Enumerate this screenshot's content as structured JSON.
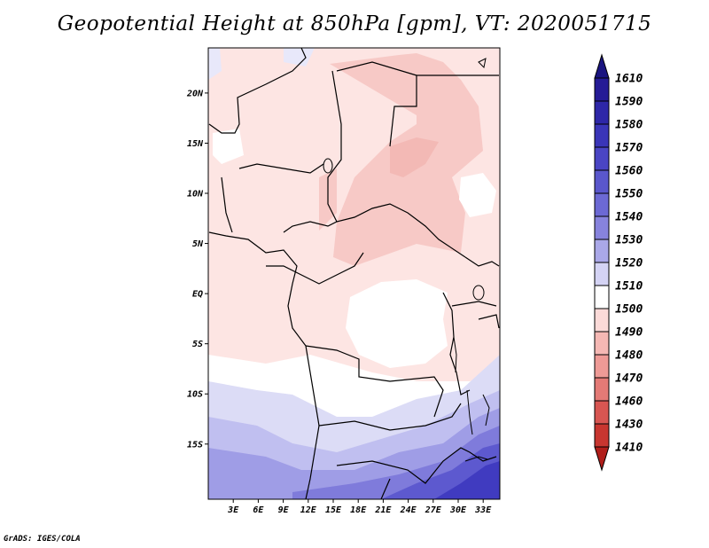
{
  "title": "Geopotential Height at 850hPa [gpm], VT: 2020051715",
  "credit": "GrADS: IGES/COLA",
  "map": {
    "lat_labels": [
      "20N",
      "15N",
      "10N",
      "5N",
      "EQ",
      "5S",
      "10S",
      "15S"
    ],
    "lon_labels": [
      "3E",
      "6E",
      "9E",
      "12E",
      "15E",
      "18E",
      "21E",
      "24E",
      "27E",
      "30E",
      "33E"
    ],
    "lat_range": [
      -20.5,
      24.5
    ],
    "lon_range": [
      0,
      35
    ]
  },
  "colorbar": {
    "levels": [
      "1610",
      "1590",
      "1580",
      "1570",
      "1560",
      "1550",
      "1540",
      "1530",
      "1520",
      "1510",
      "1500",
      "1490",
      "1480",
      "1470",
      "1460",
      "1430",
      "1410"
    ],
    "colors": [
      "#1a1480",
      "#251b96",
      "#2e27a8",
      "#3a35b8",
      "#4a45c4",
      "#5a57cc",
      "#6c69d4",
      "#8783dd",
      "#aaa8e8",
      "#d4d3f4",
      "#ffffff",
      "#fbdad8",
      "#f5b8b4",
      "#ee9a96",
      "#e47a76",
      "#d85652",
      "#c83630",
      "#b01e1a"
    ]
  }
}
